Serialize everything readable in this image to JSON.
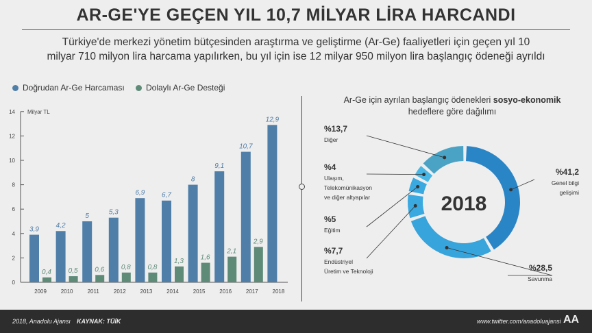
{
  "header": {
    "title": "AR-GE'YE GEÇEN YIL 10,7 MİLYAR LİRA HARCANDI",
    "subtitle_line1": "Türkiye'de merkezi yönetim bütçesinden araştırma ve geliştirme (Ar-Ge) faaliyetleri için geçen yıl 10",
    "subtitle_line2": "milyar 710 milyon lira harcama yapılırken, bu yıl için ise 12 milyar 950 milyon lira başlangıç ödeneği ayrıldı"
  },
  "colors": {
    "direct": "#4f7ea8",
    "indirect": "#5e8a78",
    "donut": [
      "#2a85c6",
      "#38a4dc",
      "#3aa9e0",
      "#3aa9e0",
      "#4ab6e4",
      "#4aa3c4"
    ]
  },
  "chart_data": [
    {
      "type": "bar",
      "title": "",
      "ylabel": "Milyar TL",
      "xlabel": "",
      "ylim": [
        0,
        14
      ],
      "yticks": [
        0,
        2,
        4,
        6,
        8,
        10,
        12,
        14
      ],
      "categories": [
        "2009",
        "2010",
        "2011",
        "2012",
        "2013",
        "2014",
        "2015",
        "2016",
        "2017",
        "2018"
      ],
      "series": [
        {
          "name": "Doğrudan Ar-Ge Harcaması",
          "values": [
            3.9,
            4.2,
            5,
            5.3,
            6.9,
            6.7,
            8,
            9.1,
            10.7,
            12.9
          ],
          "labels": [
            "3,9",
            "4,2",
            "5",
            "5,3",
            "6,9",
            "6,7",
            "8",
            "9,1",
            "10,7",
            "12,9"
          ]
        },
        {
          "name": "Dolaylı Ar-Ge Desteği",
          "values": [
            0.4,
            0.5,
            0.6,
            0.8,
            0.8,
            1.3,
            1.6,
            2.1,
            2.9,
            null
          ],
          "labels": [
            "0,4",
            "0,5",
            "0,6",
            "0,8",
            "0,8",
            "1,3",
            "1,6",
            "2,1",
            "2,9",
            null
          ]
        }
      ],
      "legend": "top-left"
    },
    {
      "type": "pie",
      "title_normal": "Ar-Ge için ayrılan başlangıç ödenekleri ",
      "title_bold": "sosyo-ekonomik",
      "title_line2": "hedeflere göre dağılımı",
      "center_label": "2018",
      "slices": [
        {
          "label": "Genel bilgi gelişimi",
          "lines": [
            "Genel bilgi",
            "gelişimi"
          ],
          "value": 41.2,
          "pct": "%41,2"
        },
        {
          "label": "Savunma",
          "lines": [
            "Savunma"
          ],
          "value": 28.5,
          "pct": "%28,5"
        },
        {
          "label": "Endüstriyel Üretim ve Teknoloji",
          "lines": [
            "Endüstriyel",
            "Üretim ve Teknoloji"
          ],
          "value": 7.7,
          "pct": "%7,7"
        },
        {
          "label": "Eğitim",
          "lines": [
            "Eğitim"
          ],
          "value": 5,
          "pct": "%5"
        },
        {
          "label": "Ulaşım, Telekomünikasyon ve diğer altyapılar",
          "lines": [
            "Ulaşım,",
            "Telekomünikasyon",
            "ve diğer altyapılar"
          ],
          "value": 4,
          "pct": "%4"
        },
        {
          "label": "Diğer",
          "lines": [
            "Diğer"
          ],
          "value": 13.7,
          "pct": "%13,7"
        }
      ]
    }
  ],
  "footer": {
    "left": "2018, Anadolu Ajansı",
    "source": "KAYNAK: TÜİK",
    "right": "www.twitter.com/anadoluajansi",
    "logo": "AA"
  }
}
